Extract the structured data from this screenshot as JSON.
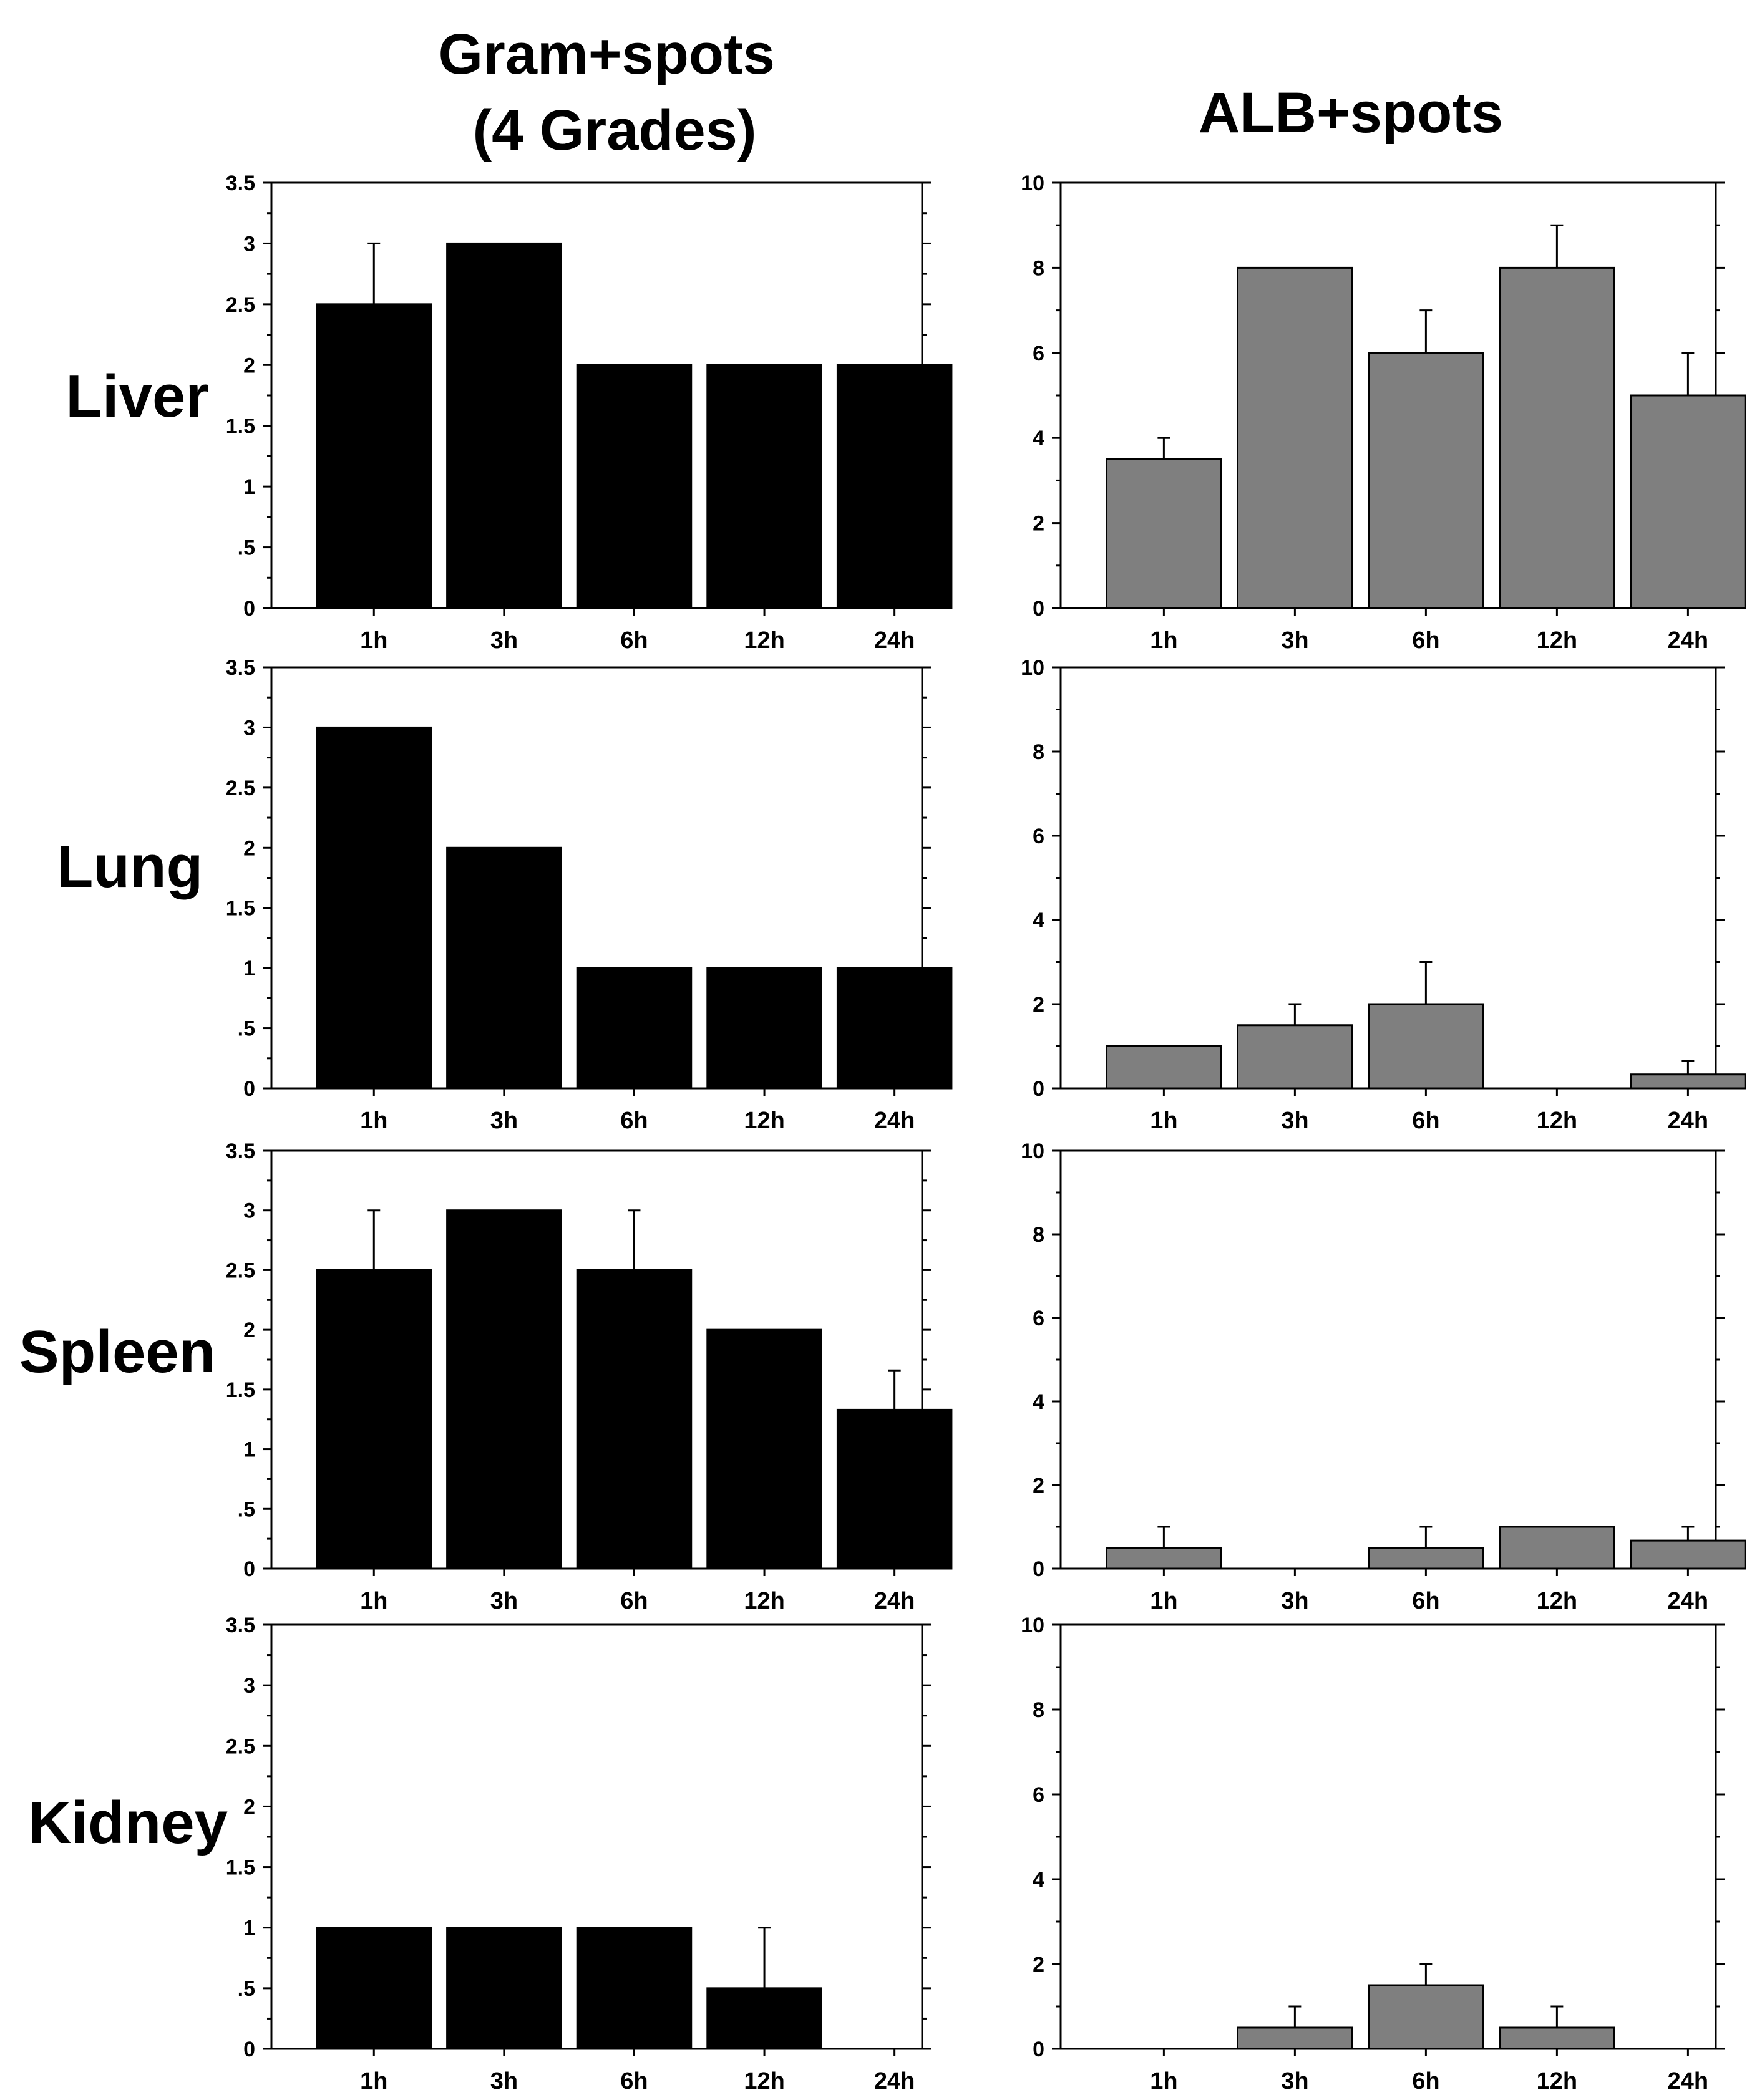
{
  "figure": {
    "column_titles": [
      "Gram+spots\n(4 Grades)",
      "ALB+spots"
    ],
    "row_labels": [
      "Liver",
      "Lung",
      "Spleen",
      "Kidney"
    ]
  },
  "colors": {
    "gram_bar": "#000000",
    "alb_bar": "#7f7f7f",
    "axis": "#000000"
  },
  "chart_data": [
    {
      "id": "liver-gram",
      "type": "bar",
      "row": "Liver",
      "column": "Gram+spots (4 Grades)",
      "categories": [
        "1h",
        "3h",
        "6h",
        "12h",
        "24h"
      ],
      "values": [
        2.5,
        3,
        2,
        2,
        2
      ],
      "errors": [
        0.5,
        0,
        0,
        0,
        0
      ],
      "ylim": [
        0,
        3.5
      ],
      "yticks": [
        0,
        0.5,
        1,
        1.5,
        2,
        2.5,
        3,
        3.5
      ],
      "ytick_labels": [
        "0",
        ".5",
        "1",
        "1.5",
        "2",
        "2.5",
        "3",
        "3.5"
      ]
    },
    {
      "id": "liver-alb",
      "type": "bar",
      "row": "Liver",
      "column": "ALB+spots",
      "categories": [
        "1h",
        "3h",
        "6h",
        "12h",
        "24h"
      ],
      "values": [
        3.5,
        8,
        6,
        8,
        5
      ],
      "errors": [
        0.5,
        0,
        1,
        1,
        1
      ],
      "ylim": [
        0,
        10
      ],
      "yticks": [
        0,
        2,
        4,
        6,
        8,
        10
      ],
      "ytick_labels": [
        "0",
        "2",
        "4",
        "6",
        "8",
        "10"
      ]
    },
    {
      "id": "lung-gram",
      "type": "bar",
      "row": "Lung",
      "column": "Gram+spots (4 Grades)",
      "categories": [
        "1h",
        "3h",
        "6h",
        "12h",
        "24h"
      ],
      "values": [
        3,
        2,
        1,
        1,
        1
      ],
      "errors": [
        0,
        0,
        0,
        0,
        0
      ],
      "ylim": [
        0,
        3.5
      ],
      "yticks": [
        0,
        0.5,
        1,
        1.5,
        2,
        2.5,
        3,
        3.5
      ],
      "ytick_labels": [
        "0",
        ".5",
        "1",
        "1.5",
        "2",
        "2.5",
        "3",
        "3.5"
      ]
    },
    {
      "id": "lung-alb",
      "type": "bar",
      "row": "Lung",
      "column": "ALB+spots",
      "categories": [
        "1h",
        "3h",
        "6h",
        "12h",
        "24h"
      ],
      "values": [
        1,
        1.5,
        2,
        0,
        0.33
      ],
      "errors": [
        0,
        0.5,
        1,
        0,
        0.33
      ],
      "ylim": [
        0,
        10
      ],
      "yticks": [
        0,
        2,
        4,
        6,
        8,
        10
      ],
      "ytick_labels": [
        "0",
        "2",
        "4",
        "6",
        "8",
        "10"
      ]
    },
    {
      "id": "spleen-gram",
      "type": "bar",
      "row": "Spleen",
      "column": "Gram+spots (4 Grades)",
      "categories": [
        "1h",
        "3h",
        "6h",
        "12h",
        "24h"
      ],
      "values": [
        2.5,
        3,
        2.5,
        2,
        1.33
      ],
      "errors": [
        0.5,
        0,
        0.5,
        0,
        0.33
      ],
      "ylim": [
        0,
        3.5
      ],
      "yticks": [
        0,
        0.5,
        1,
        1.5,
        2,
        2.5,
        3,
        3.5
      ],
      "ytick_labels": [
        "0",
        ".5",
        "1",
        "1.5",
        "2",
        "2.5",
        "3",
        "3.5"
      ]
    },
    {
      "id": "spleen-alb",
      "type": "bar",
      "row": "Spleen",
      "column": "ALB+spots",
      "categories": [
        "1h",
        "3h",
        "6h",
        "12h",
        "24h"
      ],
      "values": [
        0.5,
        0,
        0.5,
        1,
        0.67
      ],
      "errors": [
        0.5,
        0,
        0.5,
        0,
        0.33
      ],
      "ylim": [
        0,
        10
      ],
      "yticks": [
        0,
        2,
        4,
        6,
        8,
        10
      ],
      "ytick_labels": [
        "0",
        "2",
        "4",
        "6",
        "8",
        "10"
      ]
    },
    {
      "id": "kidney-gram",
      "type": "bar",
      "row": "Kidney",
      "column": "Gram+spots (4 Grades)",
      "categories": [
        "1h",
        "3h",
        "6h",
        "12h",
        "24h"
      ],
      "values": [
        1,
        1,
        1,
        0.5,
        0
      ],
      "errors": [
        0,
        0,
        0,
        0.5,
        0
      ],
      "ylim": [
        0,
        3.5
      ],
      "yticks": [
        0,
        0.5,
        1,
        1.5,
        2,
        2.5,
        3,
        3.5
      ],
      "ytick_labels": [
        "0",
        ".5",
        "1",
        "1.5",
        "2",
        "2.5",
        "3",
        "3.5"
      ]
    },
    {
      "id": "kidney-alb",
      "type": "bar",
      "row": "Kidney",
      "column": "ALB+spots",
      "categories": [
        "1h",
        "3h",
        "6h",
        "12h",
        "24h"
      ],
      "values": [
        0,
        0.5,
        1.5,
        0.5,
        0
      ],
      "errors": [
        0,
        0.5,
        0.5,
        0.5,
        0
      ],
      "ylim": [
        0,
        10
      ],
      "yticks": [
        0,
        2,
        4,
        6,
        8,
        10
      ],
      "ytick_labels": [
        "0",
        "2",
        "4",
        "6",
        "8",
        "10"
      ]
    }
  ]
}
